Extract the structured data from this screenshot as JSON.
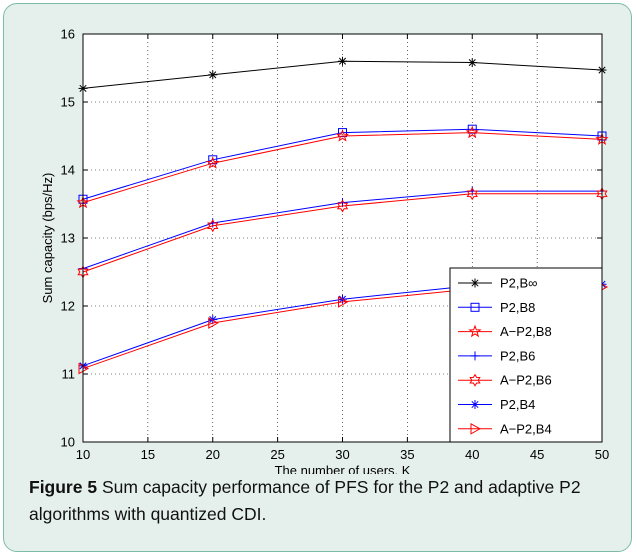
{
  "caption": {
    "label": "Figure 5",
    "text": "Sum capacity performance of PFS for the P2 and adaptive P2 algorithms with quantized CDI."
  },
  "colors": {
    "background": "#e5f0ec",
    "border": "#7dbcaa",
    "black": "#000000",
    "blue": "#0000ff",
    "red": "#ff0000"
  },
  "chart_data": {
    "type": "line",
    "title": "",
    "xlabel": "The number of users, K",
    "ylabel": "Sum capacity (bps/Hz)",
    "xlim": [
      10,
      50
    ],
    "ylim": [
      10,
      16
    ],
    "xticks": [
      10,
      15,
      20,
      25,
      30,
      35,
      40,
      45,
      50
    ],
    "yticks": [
      10,
      11,
      12,
      13,
      14,
      15,
      16
    ],
    "grid": true,
    "legend_position": "right",
    "x": [
      10,
      20,
      30,
      40,
      50
    ],
    "series": [
      {
        "name": "P2,B∞",
        "color": "black",
        "marker": "asterisk",
        "values": [
          15.2,
          15.4,
          15.6,
          15.58,
          15.47
        ]
      },
      {
        "name": "P2,B8",
        "color": "blue",
        "marker": "square",
        "values": [
          13.57,
          14.15,
          14.55,
          14.6,
          14.5
        ]
      },
      {
        "name": "A−P2,B8",
        "color": "red",
        "marker": "star",
        "values": [
          13.52,
          14.1,
          14.5,
          14.55,
          14.45
        ]
      },
      {
        "name": "P2,B6",
        "color": "blue",
        "marker": "plus",
        "values": [
          12.55,
          13.22,
          13.52,
          13.69,
          13.69
        ]
      },
      {
        "name": "A−P2,B6",
        "color": "red",
        "marker": "hexagram",
        "values": [
          12.5,
          13.18,
          13.47,
          13.65,
          13.65
        ]
      },
      {
        "name": "P2,B4",
        "color": "blue",
        "marker": "asterisk",
        "values": [
          11.12,
          11.8,
          12.1,
          12.3,
          12.32
        ]
      },
      {
        "name": "A−P2,B4",
        "color": "red",
        "marker": "triangle-right",
        "values": [
          11.08,
          11.75,
          12.06,
          12.25,
          12.28
        ]
      }
    ]
  }
}
